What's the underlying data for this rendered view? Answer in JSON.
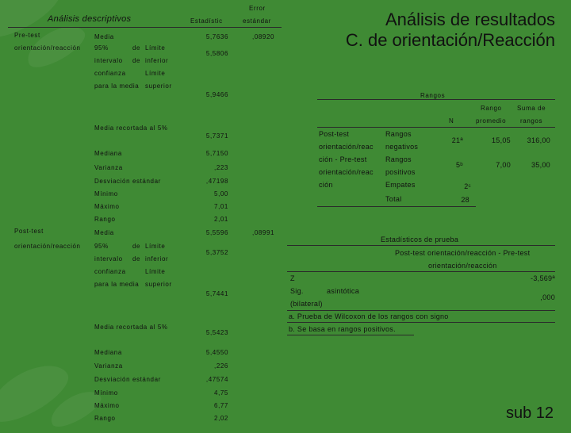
{
  "slide": {
    "title_line1": "Análisis de resultados",
    "title_line2": "C. de orientación/Reacción",
    "footer": "sub 12"
  },
  "descriptivos": {
    "title": "Análisis descriptivos",
    "col_error_line1": "Error",
    "col_error_line2": "estándar",
    "col_estadistico": "Estadístic",
    "groups": [
      {
        "label_line1": "Pre-test",
        "label_line2": "orientación/reacción",
        "error": ",08920",
        "media": "Media",
        "media_val": "5,7636",
        "ci_95": "95%",
        "ci_de": "de",
        "ci_limite": "Límite",
        "ci_intervalo": "intervalo",
        "ci_de2": "de",
        "ci_inferior": "inferior",
        "ci_inf_val": "5,5806",
        "ci_confianza": "confianza",
        "ci_limite2": "Límite",
        "ci_para": "para la media",
        "ci_superior": "superior",
        "ci_sup_val": "5,9466",
        "recortada": "Media recortada al 5%",
        "recortada_val": "5,7371",
        "mediana": "Mediana",
        "mediana_val": "5,7150",
        "varianza": "Varianza",
        "varianza_val": ",223",
        "desv": "Desviación estándar",
        "desv_val": ",47198",
        "minimo": "Mínimo",
        "minimo_val": "5,00",
        "maximo": "Máximo",
        "maximo_val": "7,01",
        "rango": "Rango",
        "rango_val": "2,01"
      },
      {
        "label_line1": "Post-test",
        "label_line2": "orientación/reacción",
        "error": ",08991",
        "media": "Media",
        "media_val": "5,5596",
        "ci_95": "95%",
        "ci_de": "de",
        "ci_limite": "Límite",
        "ci_intervalo": "intervalo",
        "ci_de2": "de",
        "ci_inferior": "inferior",
        "ci_inf_val": "5,3752",
        "ci_confianza": "confianza",
        "ci_limite2": "Límite",
        "ci_para": "para la media",
        "ci_superior": "superior",
        "ci_sup_val": "5,7441",
        "recortada": "Media recortada al 5%",
        "recortada_val": "5,5423",
        "mediana": "Mediana",
        "mediana_val": "5,4550",
        "varianza": "Varianza",
        "varianza_val": ",226",
        "desv": "Desviación estándar",
        "desv_val": ",47574",
        "minimo": "Mínimo",
        "minimo_val": "4,75",
        "maximo": "Máximo",
        "maximo_val": "6,77",
        "rango": "Rango",
        "rango_val": "2,02"
      }
    ]
  },
  "rangos": {
    "title": "Rangos",
    "col_n": "N",
    "col_rango_line1": "Rango",
    "col_rango_line2": "promedio",
    "col_suma_line1": "Suma de",
    "col_suma_line2": "rangos",
    "row_label_lines": [
      "Post-test",
      "orientación/reac",
      "ción  -  Pre-test",
      "orientación/reac",
      "ción"
    ],
    "rows": [
      {
        "label_line1": "Rangos",
        "label_line2": "negativos",
        "n": "21ª",
        "rango": "15,05",
        "suma": "316,00"
      },
      {
        "label_line1": "Rangos",
        "label_line2": "positivos",
        "n": "5ᵇ",
        "rango": "7,00",
        "suma": "35,00"
      },
      {
        "label_line1": "Empates",
        "label_line2": "",
        "n": "2ᶜ",
        "rango": "",
        "suma": ""
      },
      {
        "label_line1": "Total",
        "label_line2": "",
        "n": "28",
        "rango": "",
        "suma": ""
      }
    ]
  },
  "prueba": {
    "title": "Estadísticos de prueba",
    "col_line1": "Post-test orientación/reacción - Pre-test",
    "col_line2": "orientación/reacción",
    "z_label": "Z",
    "z_val": "-3,569ª",
    "sig_line1": "Sig.",
    "sig_asint": "asintótica",
    "sig_line2": "(bilateral)",
    "sig_val": ",000",
    "note_a": "a. Prueba de Wilcoxon de los rangos con signo",
    "note_b": "b. Se basa en rangos positivos."
  }
}
